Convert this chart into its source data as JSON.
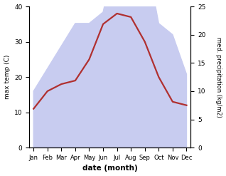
{
  "months": [
    "Jan",
    "Feb",
    "Mar",
    "Apr",
    "May",
    "Jun",
    "Jul",
    "Aug",
    "Sep",
    "Oct",
    "Nov",
    "Dec"
  ],
  "temp": [
    11,
    16,
    18,
    19,
    25,
    35,
    38,
    37,
    30,
    20,
    13,
    12
  ],
  "precip": [
    10,
    14,
    18,
    22,
    22,
    24,
    35,
    30,
    35,
    22,
    20,
    13
  ],
  "temp_color": "#b03030",
  "precip_color_fill": "#c8ccf0",
  "temp_ylim": [
    0,
    40
  ],
  "precip_ylim": [
    0,
    25
  ],
  "xlabel": "date (month)",
  "ylabel_left": "max temp (C)",
  "ylabel_right": "med. precipitation (kg/m2)",
  "temp_linewidth": 1.6,
  "background_color": "#ffffff"
}
